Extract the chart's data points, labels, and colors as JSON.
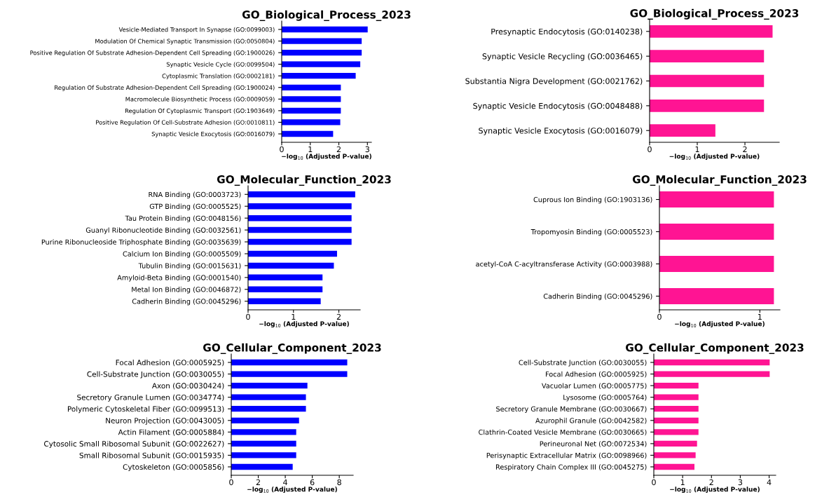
{
  "chart_data": [
    {
      "type": "bar",
      "orientation": "horizontal",
      "title": "GO_Biological_Process_2023",
      "xlabel": "−log$_{10}$ (Adjusted P-value)",
      "color": "#0000ff",
      "grid": false,
      "xlim": [
        0,
        3.14
      ],
      "xticks": [
        0,
        1,
        2,
        3
      ],
      "categories": [
        "Vesicle-Mediated Transport In Synapse (GO:0099003)",
        "Modulation Of Chemical Synaptic Transmission (GO:0050804)",
        "Positive Regulation Of Substrate Adhesion-Dependent Cell Spreading (GO:1900026)",
        "Synaptic Vesicle Cycle (GO:0099504)",
        "Cytoplasmic Translation (GO:0002181)",
        "Regulation Of Substrate Adhesion-Dependent Cell Spreading (GO:1900024)",
        "Macromolecule Biosynthetic Process (GO:0009059)",
        "Regulation Of Cytoplasmic Transport (GO:1903649)",
        "Positive Regulation Of Cell-Substrate Adhesion (GO:0010811)",
        "Synaptic Vesicle Exocytosis (GO:0016079)"
      ],
      "values": [
        3.01,
        2.8,
        2.8,
        2.75,
        2.59,
        2.07,
        2.07,
        2.07,
        2.05,
        1.8
      ]
    },
    {
      "type": "bar",
      "orientation": "horizontal",
      "title": "GO_Biological_Process_2023",
      "xlabel": "−log$_{10}$ (Adjusted P-value)",
      "color": "#ff1493",
      "grid": false,
      "xlim": [
        0,
        2.72
      ],
      "xticks": [
        0,
        1,
        2
      ],
      "categories": [
        "Presynaptic Endocytosis (GO:0140238)",
        "Synaptic Vesicle Recycling (GO:0036465)",
        "Substantia Nigra Development (GO:0021762)",
        "Synaptic Vesicle Endocytosis (GO:0048488)",
        "Synaptic Vesicle Exocytosis (GO:0016079)"
      ],
      "values": [
        2.58,
        2.4,
        2.4,
        2.4,
        1.38
      ]
    },
    {
      "type": "bar",
      "orientation": "horizontal",
      "title": "GO_Molecular_Function_2023",
      "xlabel": "−log$_{10}$ (Adjusted P-value)",
      "color": "#0000ff",
      "grid": false,
      "xlim": [
        0,
        2.47
      ],
      "xticks": [
        0,
        1,
        2
      ],
      "categories": [
        "RNA Binding (GO:0003723)",
        "GTP Binding (GO:0005525)",
        "Tau Protein Binding (GO:0048156)",
        "Guanyl Ribonucleotide Binding (GO:0032561)",
        "Purine Ribonucleoside Triphosphate Binding (GO:0035639)",
        "Calcium Ion Binding (GO:0005509)",
        "Tubulin Binding (GO:0015631)",
        "Amyloid-Beta Binding (GO:0001540)",
        "Metal Ion Binding (GO:0046872)",
        "Cadherin Binding (GO:0045296)"
      ],
      "values": [
        2.36,
        2.28,
        2.28,
        2.28,
        2.28,
        1.96,
        1.89,
        1.64,
        1.64,
        1.6
      ]
    },
    {
      "type": "bar",
      "orientation": "horizontal",
      "title": "GO_Molecular_Function_2023",
      "xlabel": "−log$_{10}$ (Adjusted P-value)",
      "color": "#ff1493",
      "grid": false,
      "xlim": [
        0,
        1.2
      ],
      "xticks": [
        0,
        1
      ],
      "categories": [
        "Cuprous Ion Binding (GO:1903136)",
        "Tropomyosin Binding (GO:0005523)",
        "acetyl-CoA C-acyltransferase Activity (GO:0003988)",
        "Cadherin Binding (GO:0045296)"
      ],
      "values": [
        1.14,
        1.14,
        1.14,
        1.14
      ]
    },
    {
      "type": "bar",
      "orientation": "horizontal",
      "title": "GO_Cellular_Component_2023",
      "xlabel": "−log$_{10}$ (Adjusted P-value)",
      "color": "#0000ff",
      "grid": false,
      "xlim": [
        0,
        9.03
      ],
      "xticks": [
        0,
        2,
        4,
        6,
        8
      ],
      "categories": [
        "Focal Adhesion (GO:0005925)",
        "Cell-Substrate Junction (GO:0030055)",
        "Axon (GO:0030424)",
        "Secretory Granule Lumen (GO:0034774)",
        "Polymeric Cytoskeletal Fiber (GO:0099513)",
        "Neuron Projection (GO:0043005)",
        "Actin Filament (GO:0005884)",
        "Cytosolic Small Ribosomal Subunit (GO:0022627)",
        "Small Ribosomal Subunit (GO:0015935)",
        "Cytoskeleton (GO:0005856)"
      ],
      "values": [
        8.59,
        8.59,
        5.64,
        5.53,
        5.53,
        5.02,
        4.81,
        4.81,
        4.81,
        4.55
      ]
    },
    {
      "type": "bar",
      "orientation": "horizontal",
      "title": "GO_Cellular_Component_2023",
      "xlabel": "−log$_{10}$ (Adjusted P-value)",
      "color": "#ff1493",
      "grid": false,
      "xlim": [
        0,
        4.23
      ],
      "xticks": [
        0,
        1,
        2,
        3,
        4
      ],
      "categories": [
        "Cell-Substrate Junction (GO:0030055)",
        "Focal Adhesion (GO:0005925)",
        "Vacuolar Lumen (GO:0005775)",
        "Lysosome (GO:0005764)",
        "Secretory Granule Membrane (GO:0030667)",
        "Azurophil Granule (GO:0042582)",
        "Clathrin-Coated Vesicle Membrane (GO:0030665)",
        "Perineuronal Net (GO:0072534)",
        "Perisynaptic Extracellular Matrix (GO:0098966)",
        "Respiratory Chain Complex III (GO:0045275)"
      ],
      "values": [
        4.02,
        4.02,
        1.55,
        1.55,
        1.55,
        1.55,
        1.55,
        1.5,
        1.45,
        1.41
      ]
    }
  ]
}
